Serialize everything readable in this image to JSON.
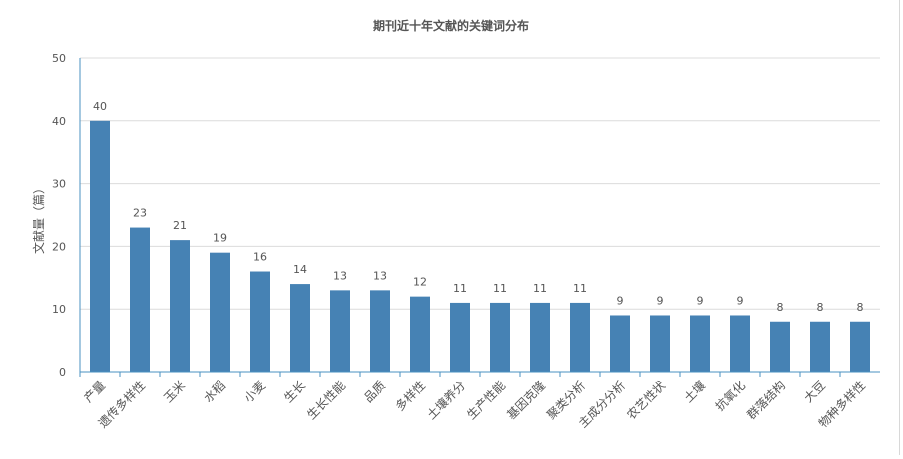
{
  "chart_data": {
    "type": "bar",
    "title": "期刊近十年文献的关键词分布",
    "ylabel": "文献量（篇）",
    "xlabel": "",
    "ylim": [
      0,
      50
    ],
    "yticks": [
      0,
      10,
      20,
      30,
      40,
      50
    ],
    "grid": true,
    "legend": "none",
    "categories": [
      "产量",
      "遗传多样性",
      "玉米",
      "水稻",
      "小麦",
      "生长",
      "生长性能",
      "品质",
      "多样性",
      "土壤养分",
      "生产性能",
      "基因克隆",
      "聚类分析",
      "主成分分析",
      "农艺性状",
      "土壤",
      "抗氧化",
      "群落结构",
      "大豆",
      "物种多样性"
    ],
    "values": [
      40,
      23,
      21,
      19,
      16,
      14,
      13,
      13,
      12,
      11,
      11,
      11,
      11,
      9,
      9,
      9,
      9,
      8,
      8,
      8
    ]
  },
  "colors": {
    "bar": "#4682b4",
    "axis": "#4a90c0",
    "grid": "#dcdcdc",
    "text": "#555555"
  }
}
